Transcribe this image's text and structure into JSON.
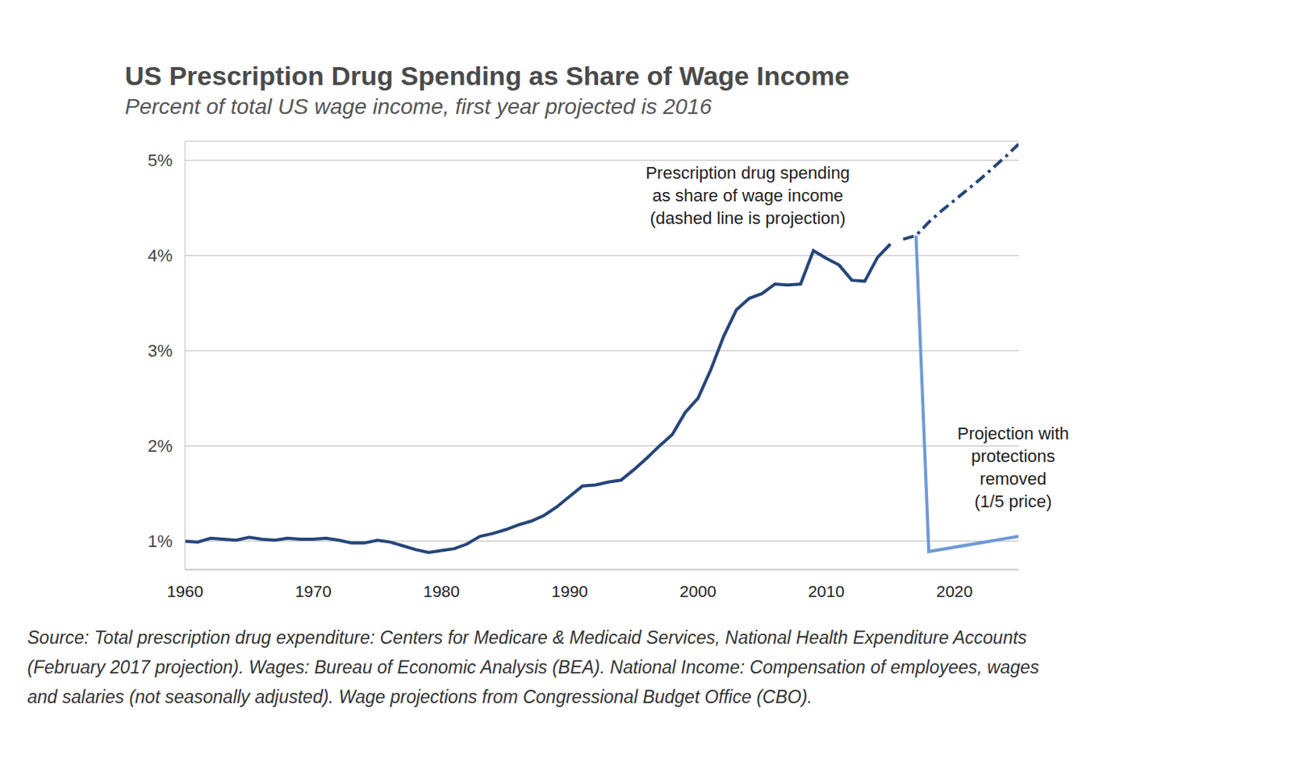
{
  "chart_data": {
    "type": "line",
    "title": "US Prescription Drug Spending as Share of Wage Income",
    "subtitle": "Percent of total US wage income, first year projected is 2016",
    "source": [
      "Source: Total prescription drug expenditure: Centers for Medicare & Medicaid Services, National Health Expenditure Accounts",
      "(February 2017 projection). Wages: Bureau of Economic Analysis (BEA). National Income: Compensation of employees, wages",
      "and salaries (not seasonally adjusted). Wage projections from Congressional Budget Office (CBO)."
    ],
    "xlim": [
      1960,
      2025
    ],
    "xticks": [
      1960,
      1970,
      1980,
      1990,
      2000,
      2010,
      2020
    ],
    "ylim": [
      0.7,
      5.2
    ],
    "yticks": [
      {
        "value": 1,
        "label": "1%"
      },
      {
        "value": 2,
        "label": "2%"
      },
      {
        "value": 3,
        "label": "3%"
      },
      {
        "value": 4,
        "label": "4%"
      },
      {
        "value": 5,
        "label": "5%"
      }
    ],
    "grid": true,
    "series": [
      {
        "name": "Prescription drug spending\nas share of wage income\n(dashed line is projection)",
        "color": "#26467a",
        "line_style": "solid",
        "x": [
          1960,
          1961,
          1962,
          1963,
          1964,
          1965,
          1966,
          1967,
          1968,
          1969,
          1970,
          1971,
          1972,
          1973,
          1974,
          1975,
          1976,
          1977,
          1978,
          1979,
          1980,
          1981,
          1982,
          1983,
          1984,
          1985,
          1986,
          1987,
          1988,
          1989,
          1990,
          1991,
          1992,
          1993,
          1994,
          1995,
          1996,
          1997,
          1998,
          1999,
          2000,
          2001,
          2002,
          2003,
          2004,
          2005,
          2006,
          2007,
          2008,
          2009,
          2010,
          2011,
          2012,
          2013,
          2014,
          2015
        ],
        "values": [
          1.0,
          0.99,
          1.03,
          1.02,
          1.01,
          1.04,
          1.02,
          1.01,
          1.03,
          1.02,
          1.02,
          1.03,
          1.01,
          0.98,
          0.98,
          1.01,
          0.99,
          0.95,
          0.91,
          0.88,
          0.9,
          0.92,
          0.97,
          1.05,
          1.08,
          1.12,
          1.17,
          1.21,
          1.27,
          1.36,
          1.47,
          1.58,
          1.59,
          1.62,
          1.64,
          1.75,
          1.87,
          2.0,
          2.12,
          2.35,
          2.5,
          2.8,
          3.15,
          3.43,
          3.55,
          3.6,
          3.7,
          3.69,
          3.7,
          4.05,
          3.97,
          3.9,
          3.74,
          3.73,
          3.98,
          4.12
        ]
      },
      {
        "color": "#26467a",
        "line_style": "dashdot",
        "x": [
          2016,
          2017,
          2018,
          2019,
          2020,
          2021,
          2022,
          2023,
          2024,
          2025
        ],
        "values": [
          4.17,
          4.21,
          4.35,
          4.47,
          4.58,
          4.69,
          4.8,
          4.92,
          5.04,
          5.17
        ]
      },
      {
        "name": "Projection with\nprotections\nremoved\n(1/5 price)",
        "color": "#6f9ad6",
        "line_style": "solid",
        "x": [
          2017,
          2018,
          2025
        ],
        "values": [
          4.21,
          0.89,
          1.05
        ]
      }
    ]
  }
}
